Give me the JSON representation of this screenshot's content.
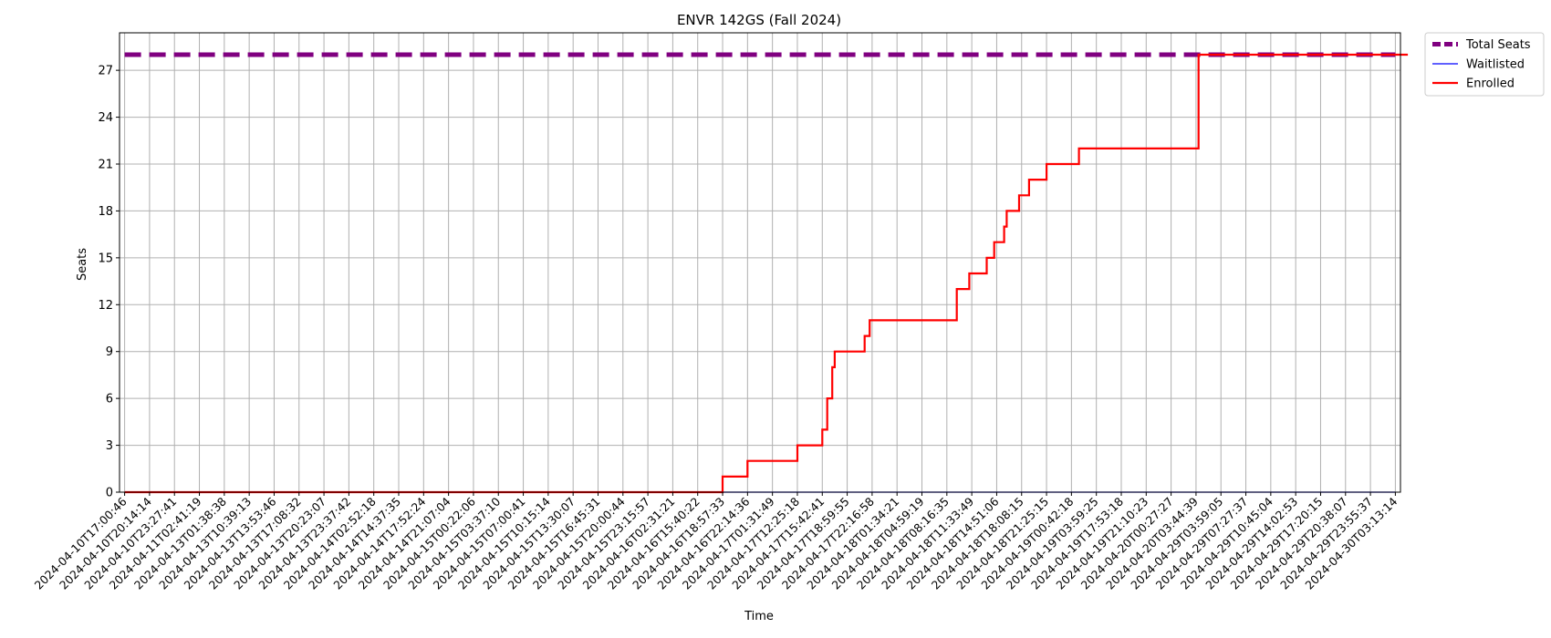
{
  "chart_data": {
    "type": "line",
    "title": "ENVR 142GS (Fall 2024)",
    "xlabel": "Time",
    "ylabel": "Seats",
    "ylim": [
      0,
      29.4
    ],
    "yticks": [
      0,
      3,
      6,
      9,
      12,
      15,
      18,
      21,
      24,
      27
    ],
    "grid": true,
    "legend_position": "outside-top-right",
    "x": [
      "2024-04-10T17:00:46",
      "2024-04-10T20:14:14",
      "2024-04-10T23:27:41",
      "2024-04-11T02:41:19",
      "2024-04-13T01:38:38",
      "2024-04-13T10:39:13",
      "2024-04-13T13:53:46",
      "2024-04-13T17:08:32",
      "2024-04-13T20:23:07",
      "2024-04-13T23:37:42",
      "2024-04-14T02:52:18",
      "2024-04-14T14:37:35",
      "2024-04-14T17:52:24",
      "2024-04-14T21:07:04",
      "2024-04-15T00:22:06",
      "2024-04-15T03:37:10",
      "2024-04-15T07:00:41",
      "2024-04-15T10:15:14",
      "2024-04-15T13:30:07",
      "2024-04-15T16:45:31",
      "2024-04-15T20:00:44",
      "2024-04-15T23:15:57",
      "2024-04-16T02:31:21",
      "2024-04-16T15:40:22",
      "2024-04-16T18:57:33",
      "2024-04-16T22:14:36",
      "2024-04-17T01:31:49",
      "2024-04-17T12:25:18",
      "2024-04-17T15:42:41",
      "2024-04-17T18:59:55",
      "2024-04-17T22:16:58",
      "2024-04-18T01:34:21",
      "2024-04-18T04:59:19",
      "2024-04-18T08:16:35",
      "2024-04-18T11:33:49",
      "2024-04-18T14:51:06",
      "2024-04-18T18:08:15",
      "2024-04-18T21:25:15",
      "2024-04-19T00:42:18",
      "2024-04-19T03:59:25",
      "2024-04-19T17:53:18",
      "2024-04-19T21:10:23",
      "2024-04-20T00:27:27",
      "2024-04-20T03:44:39",
      "2024-04-29T03:59:05",
      "2024-04-29T07:27:37",
      "2024-04-29T10:45:04",
      "2024-04-29T14:02:53",
      "2024-04-29T17:20:15",
      "2024-04-29T20:38:07",
      "2024-04-29T23:55:37",
      "2024-04-30T03:13:14"
    ],
    "series": [
      {
        "name": "Total Seats",
        "color": "#800080",
        "style": "dashed",
        "values": [
          28,
          28,
          28,
          28,
          28,
          28,
          28,
          28,
          28,
          28,
          28,
          28,
          28,
          28,
          28,
          28,
          28,
          28,
          28,
          28,
          28,
          28,
          28,
          28,
          28,
          28,
          28,
          28,
          28,
          28,
          28,
          28,
          28,
          28,
          28,
          28,
          28,
          28,
          28,
          28,
          28,
          28,
          28,
          28,
          28,
          28,
          28,
          28,
          28,
          28,
          28,
          28
        ]
      },
      {
        "name": "Waitlisted",
        "color": "#0000ff",
        "style": "solid-thin",
        "values": [
          0,
          0,
          0,
          0,
          0,
          0,
          0,
          0,
          0,
          0,
          0,
          0,
          0,
          0,
          0,
          0,
          0,
          0,
          0,
          0,
          0,
          0,
          0,
          0,
          0,
          0,
          0,
          0,
          0,
          0,
          0,
          0,
          0,
          0,
          0,
          0,
          0,
          0,
          0,
          0,
          0,
          0,
          0,
          0,
          0,
          0,
          0,
          0,
          0,
          0,
          0,
          0
        ]
      },
      {
        "name": "Enrolled",
        "color": "#ff0000",
        "style": "solid",
        "values": [
          0,
          0,
          0,
          0,
          0,
          0,
          0,
          0,
          0,
          0,
          0,
          0,
          0,
          0,
          0,
          0,
          0,
          0,
          0,
          0,
          0,
          0,
          0,
          0,
          1,
          2,
          2,
          3,
          6,
          9,
          11,
          11,
          11,
          11,
          14,
          16,
          19,
          21,
          21,
          22,
          22,
          22,
          22,
          22,
          28,
          28,
          28,
          28,
          28,
          28,
          28,
          28
        ]
      }
    ]
  },
  "enrolled_detail": [
    [
      0,
      0
    ],
    [
      24,
      0
    ],
    [
      24,
      1
    ],
    [
      25,
      1
    ],
    [
      25,
      2
    ],
    [
      27,
      2
    ],
    [
      27,
      3
    ],
    [
      28,
      3
    ],
    [
      28,
      4
    ],
    [
      28.2,
      4
    ],
    [
      28.2,
      6
    ],
    [
      28.4,
      6
    ],
    [
      28.4,
      8
    ],
    [
      28.5,
      8
    ],
    [
      28.5,
      9
    ],
    [
      29.7,
      9
    ],
    [
      29.7,
      10
    ],
    [
      29.9,
      10
    ],
    [
      29.9,
      11
    ],
    [
      33.4,
      11
    ],
    [
      33.4,
      13
    ],
    [
      33.9,
      13
    ],
    [
      33.9,
      14
    ],
    [
      34.6,
      14
    ],
    [
      34.6,
      15
    ],
    [
      34.9,
      15
    ],
    [
      34.9,
      16
    ],
    [
      35.3,
      16
    ],
    [
      35.3,
      17
    ],
    [
      35.4,
      17
    ],
    [
      35.4,
      18
    ],
    [
      35.9,
      18
    ],
    [
      35.9,
      19
    ],
    [
      36.3,
      19
    ],
    [
      36.3,
      20
    ],
    [
      37,
      20
    ],
    [
      37,
      21
    ],
    [
      38.3,
      21
    ],
    [
      38.3,
      22
    ],
    [
      43.1,
      22
    ],
    [
      43.1,
      28
    ],
    [
      51.5,
      28
    ]
  ]
}
